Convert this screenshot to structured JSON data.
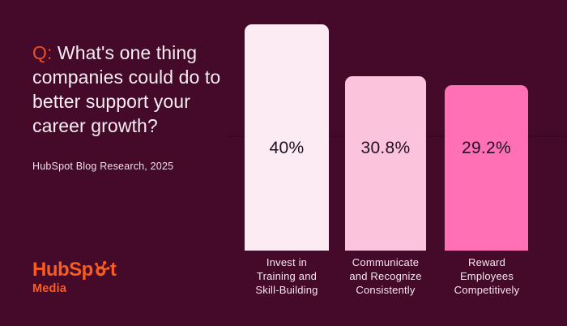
{
  "colors": {
    "background": "#45092a",
    "accent_orange": "#ea4f2a",
    "logo_orange": "#fa5c1e",
    "bar_1": "#fcebf3",
    "bar_2": "#fcc3dc",
    "bar_3": "#ff70b5",
    "value_text": "#1e1020",
    "light_text": "#f6e7ef"
  },
  "question": {
    "prefix": "Q:",
    "text": "What's one thing companies could do to better support your career growth?"
  },
  "source": "HubSpot Blog Research, 2025",
  "logo": {
    "wordmark_pre": "HubSp",
    "wordmark_post": "t",
    "sprocket_icon": "hubspot-sprocket-icon",
    "subtext": "Media"
  },
  "chart_data": {
    "type": "bar",
    "title": "Q: What's one thing companies could do to better support your career growth?",
    "source": "HubSpot Blog Research, 2025",
    "categories": [
      "Invest in Training and Skill-Building",
      "Communicate and Recognize Consistently",
      "Reward Employees Competitively"
    ],
    "category_labels": [
      "Invest in\nTraining and\nSkill-Building",
      "Communicate\nand Recognize\nConsistently",
      "Reward\nEmployees\nCompetitively"
    ],
    "values": [
      40,
      30.8,
      29.2
    ],
    "value_labels": [
      "40%",
      "30.8%",
      "29.2%"
    ],
    "bar_colors": [
      "#fcebf3",
      "#fcc3dc",
      "#ff70b5"
    ],
    "xlabel": "",
    "ylabel": "",
    "ylim": [
      0,
      40
    ],
    "grid": false,
    "legend": false
  }
}
